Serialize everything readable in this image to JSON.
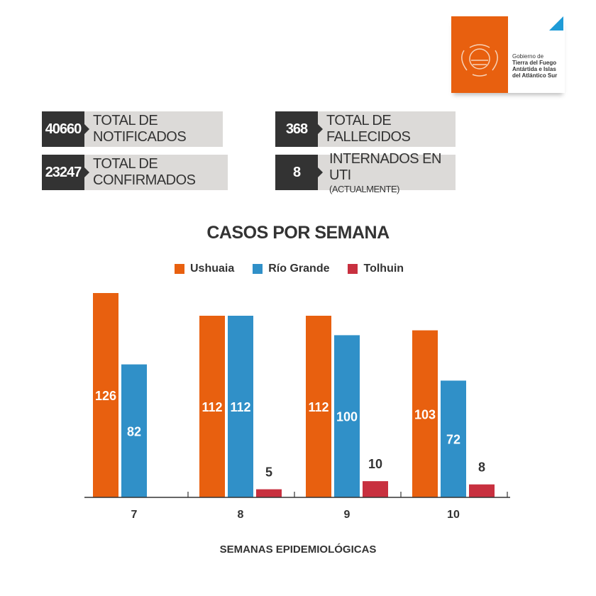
{
  "logo": {
    "line1": "Gobierno de",
    "line2": "Tierra del Fuego",
    "line3": "Antártida e Islas",
    "line4": "del Atlántico Sur"
  },
  "stats": [
    {
      "value": "40660",
      "label": "TOTAL DE NOTIFICADOS"
    },
    {
      "value": "23247",
      "label": "TOTAL DE CONFIRMADOS"
    },
    {
      "value": "368",
      "label": "TOTAL DE FALLECIDOS"
    },
    {
      "value": "8",
      "label": "INTERNADOS EN UTI",
      "sublabel": "(ACTUALMENTE)"
    }
  ],
  "chart_data": {
    "type": "bar",
    "title": "CASOS POR SEMANA",
    "xlabel": "SEMANAS EPIDEMIOLÓGICAS",
    "ylabel": "",
    "categories": [
      "7",
      "8",
      "9",
      "10"
    ],
    "series": [
      {
        "name": "Ushuaia",
        "color": "#e8600f",
        "values": [
          126,
          112,
          112,
          103
        ]
      },
      {
        "name": "Río Grande",
        "color": "#3090c8",
        "values": [
          82,
          112,
          100,
          72
        ]
      },
      {
        "name": "Tolhuin",
        "color": "#c8303f",
        "values": [
          null,
          5,
          10,
          8
        ]
      }
    ],
    "ylim": [
      0,
      126
    ],
    "grid": false,
    "legend_position": "top-center"
  }
}
